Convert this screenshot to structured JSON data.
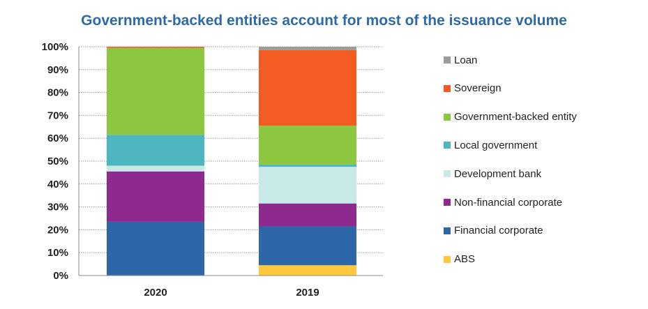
{
  "chart_data": {
    "type": "bar",
    "stacked": true,
    "title": "Government-backed entities account for most of the issuance volume",
    "categories": [
      "2020",
      "2019"
    ],
    "yticks": [
      "0%",
      "10%",
      "20%",
      "30%",
      "40%",
      "50%",
      "60%",
      "70%",
      "80%",
      "90%",
      "100%"
    ],
    "ylim": [
      0,
      100
    ],
    "grid": true,
    "legend_position": "right",
    "series": [
      {
        "name": "ABS",
        "color": "#ffc83d",
        "values": [
          0,
          4.5
        ]
      },
      {
        "name": "Financial corporate",
        "color": "#2e67a8",
        "values": [
          23.5,
          17
        ]
      },
      {
        "name": "Non-financial corporate",
        "color": "#8e2a8e",
        "values": [
          22,
          10
        ]
      },
      {
        "name": "Development bank",
        "color": "#c9e9e7",
        "values": [
          2.5,
          16
        ]
      },
      {
        "name": "Local government",
        "color": "#4db6c1",
        "values": [
          13.5,
          1
        ]
      },
      {
        "name": "Government-backed entity",
        "color": "#8dc63f",
        "values": [
          38,
          17
        ]
      },
      {
        "name": "Sovereign",
        "color": "#f25c23",
        "values": [
          0.5,
          33
        ]
      },
      {
        "name": "Loan",
        "color": "#9b9b9b",
        "values": [
          0,
          1.5
        ]
      }
    ]
  }
}
